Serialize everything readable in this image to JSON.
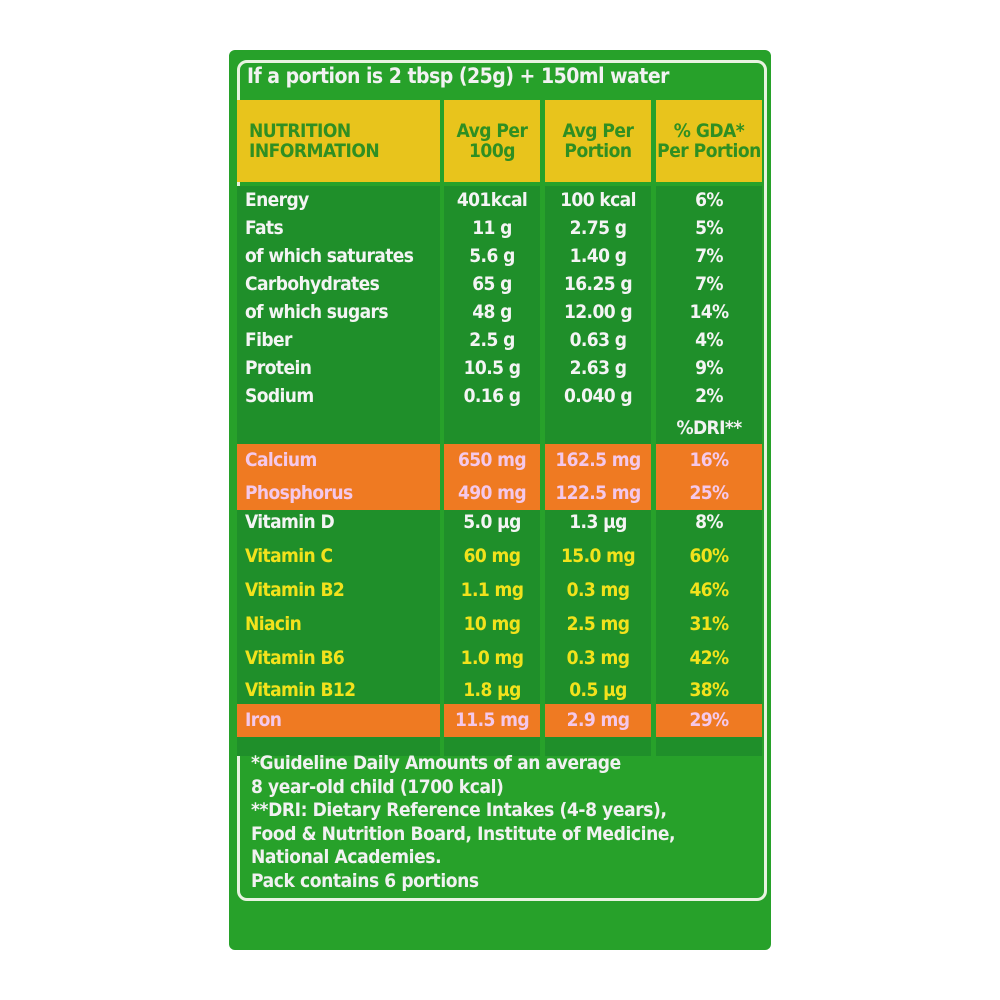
{
  "portion_note": "If a portion is 2 tbsp (25g) + 150ml water",
  "header": {
    "label": "NUTRITION INFORMATION",
    "col1": "Avg Per 100g",
    "col2": "Avg Per Portion",
    "col3": "% GDA* Per Portion"
  },
  "colors": {
    "background": "#27a12a",
    "header": "#e8c41c",
    "highlight": "#ef7a22",
    "mineral_text": "#f4c8ea",
    "vitamin_text": "#f2e21c"
  },
  "gda_rows": [
    {
      "name": "Energy",
      "per100g": "401kcal",
      "perPortion": "100 kcal",
      "pct": "6%"
    },
    {
      "name": "Fats",
      "per100g": "11 g",
      "perPortion": "2.75 g",
      "pct": "5%"
    },
    {
      "name": "of which saturates",
      "per100g": "5.6 g",
      "perPortion": "1.40 g",
      "pct": "7%"
    },
    {
      "name": "Carbohydrates",
      "per100g": "65 g",
      "perPortion": "16.25 g",
      "pct": "7%"
    },
    {
      "name": "of which sugars",
      "per100g": "48 g",
      "perPortion": "12.00 g",
      "pct": "14%"
    },
    {
      "name": "Fiber",
      "per100g": "2.5 g",
      "perPortion": "0.63 g",
      "pct": "4%"
    },
    {
      "name": "Protein",
      "per100g": "10.5 g",
      "perPortion": "2.63 g",
      "pct": "9%"
    },
    {
      "name": "Sodium",
      "per100g": "0.16 g",
      "perPortion": "0.040 g",
      "pct": "2%"
    }
  ],
  "dri_label": "%DRI**",
  "dri_rows": [
    {
      "name": "Calcium",
      "per100g": "650 mg",
      "perPortion": "162.5 mg",
      "pct": "16%",
      "style": "orange"
    },
    {
      "name": "Phosphorus",
      "per100g": "490 mg",
      "perPortion": "122.5 mg",
      "pct": "25%",
      "style": "orange"
    },
    {
      "name": "Vitamin D",
      "per100g": "5.0 µg",
      "perPortion": "1.3 µg",
      "pct": "8%",
      "style": "white"
    },
    {
      "name": "Vitamin C",
      "per100g": "60 mg",
      "perPortion": "15.0 mg",
      "pct": "60%",
      "style": "yellow"
    },
    {
      "name": "Vitamin B2",
      "per100g": "1.1 mg",
      "perPortion": "0.3 mg",
      "pct": "46%",
      "style": "yellow"
    },
    {
      "name": "Niacin",
      "per100g": "10 mg",
      "perPortion": "2.5 mg",
      "pct": "31%",
      "style": "yellow"
    },
    {
      "name": "Vitamin B6",
      "per100g": "1.0 mg",
      "perPortion": "0.3 mg",
      "pct": "42%",
      "style": "yellow"
    },
    {
      "name": "Vitamin B12",
      "per100g": "1.8 µg",
      "perPortion": "0.5 µg",
      "pct": "38%",
      "style": "yellow"
    },
    {
      "name": "Iron",
      "per100g": "11.5 mg",
      "perPortion": "2.9 mg",
      "pct": "29%",
      "style": "orange"
    }
  ],
  "footer": [
    "*Guideline Daily Amounts of an average",
    "8 year-old child (1700 kcal)",
    "**DRI: Dietary Reference Intakes (4-8 years),",
    "Food & Nutrition Board, Institute of Medicine,",
    "National Academies.",
    "Pack contains 6 portions"
  ]
}
